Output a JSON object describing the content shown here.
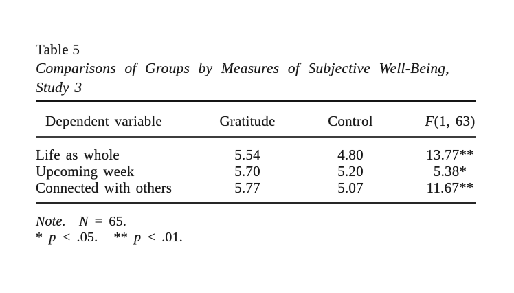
{
  "page": {
    "background_color": "#ffffff",
    "text_color": "#1a1a1a"
  },
  "table": {
    "label": "Table 5",
    "title_line1": "Comparisons of Groups by Measures of Subjective Well-Being,",
    "title_line2": "Study 3",
    "columns": [
      "Dependent variable",
      "Gratitude",
      "Control"
    ],
    "f_header": {
      "symbol": "F",
      "df": "(1, 63)"
    },
    "rows": [
      {
        "cells": [
          "Life as whole",
          "5.54",
          "4.80",
          "13.77**"
        ]
      },
      {
        "cells": [
          "Upcoming week",
          "5.70",
          "5.20",
          "5.38*"
        ]
      },
      {
        "cells": [
          "Connected with others",
          "5.77",
          "5.07",
          "11.67**"
        ]
      }
    ],
    "note": {
      "label": "Note.",
      "n_symbol": "N",
      "n_value": "= 65."
    },
    "significance": {
      "star1": "*",
      "p1": "p",
      "value1": "< .05.",
      "star2": "**",
      "p2": "p",
      "value2": "< .01."
    }
  },
  "chart_data": {
    "type": "table",
    "title": "Table 5. Comparisons of Groups by Measures of Subjective Well-Being, Study 3",
    "columns": [
      "Dependent variable",
      "Gratitude",
      "Control",
      "F(1, 63)"
    ],
    "rows": [
      [
        "Life as whole",
        5.54,
        4.8,
        "13.77**"
      ],
      [
        "Upcoming week",
        5.7,
        5.2,
        "5.38*"
      ],
      [
        "Connected with others",
        5.77,
        5.07,
        "11.67**"
      ]
    ],
    "notes": [
      "Note. N = 65.",
      "* p < .05.",
      "** p < .01."
    ]
  }
}
